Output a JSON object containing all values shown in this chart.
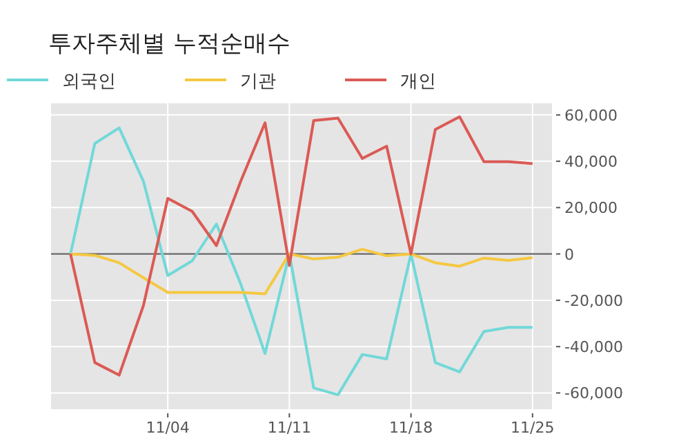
{
  "chart_data": {
    "type": "line",
    "title": "투자주체별 누적순매수",
    "categories": [
      null,
      null,
      null,
      null,
      "11/04",
      null,
      null,
      null,
      null,
      "11/11",
      null,
      null,
      null,
      null,
      "11/18",
      null,
      null,
      null,
      null,
      "11/25"
    ],
    "series": [
      {
        "name": "외국인",
        "color": "#72d8d8",
        "values": [
          0,
          47700,
          54400,
          31300,
          -9300,
          -3000,
          12900,
          -13000,
          -43000,
          0,
          -57800,
          -60800,
          -43400,
          -45300,
          0,
          -46900,
          -50900,
          -33500,
          -31700,
          -31700
        ]
      },
      {
        "name": "기관",
        "color": "#f5c842",
        "values": [
          0,
          -600,
          -3800,
          -10300,
          -16600,
          -16600,
          -16600,
          -16600,
          -17200,
          0,
          -2200,
          -1400,
          2000,
          -800,
          0,
          -3800,
          -5300,
          -1800,
          -2800,
          -1600
        ]
      },
      {
        "name": "개인",
        "color": "#db5a55",
        "values": [
          0,
          -46900,
          -52300,
          -22200,
          24000,
          18400,
          3600,
          31400,
          56600,
          -5000,
          57600,
          58600,
          41200,
          46500,
          0,
          53700,
          59200,
          39800,
          39800,
          39000
        ]
      }
    ],
    "ylim": [
      -67000,
      65000
    ],
    "yticks": [
      {
        "value": -60000,
        "label": "-60,000"
      },
      {
        "value": -40000,
        "label": "-40,000"
      },
      {
        "value": -20000,
        "label": "-20,000"
      },
      {
        "value": 0,
        "label": "0"
      },
      {
        "value": 20000,
        "label": "20,000"
      },
      {
        "value": 40000,
        "label": "40,000"
      },
      {
        "value": 60000,
        "label": "60,000"
      }
    ],
    "ref_lines": [
      {
        "axis": "y",
        "value": 0,
        "color": "#666666"
      }
    ],
    "grid": true,
    "legend": "top",
    "marker": "none",
    "line_style": "solid"
  }
}
